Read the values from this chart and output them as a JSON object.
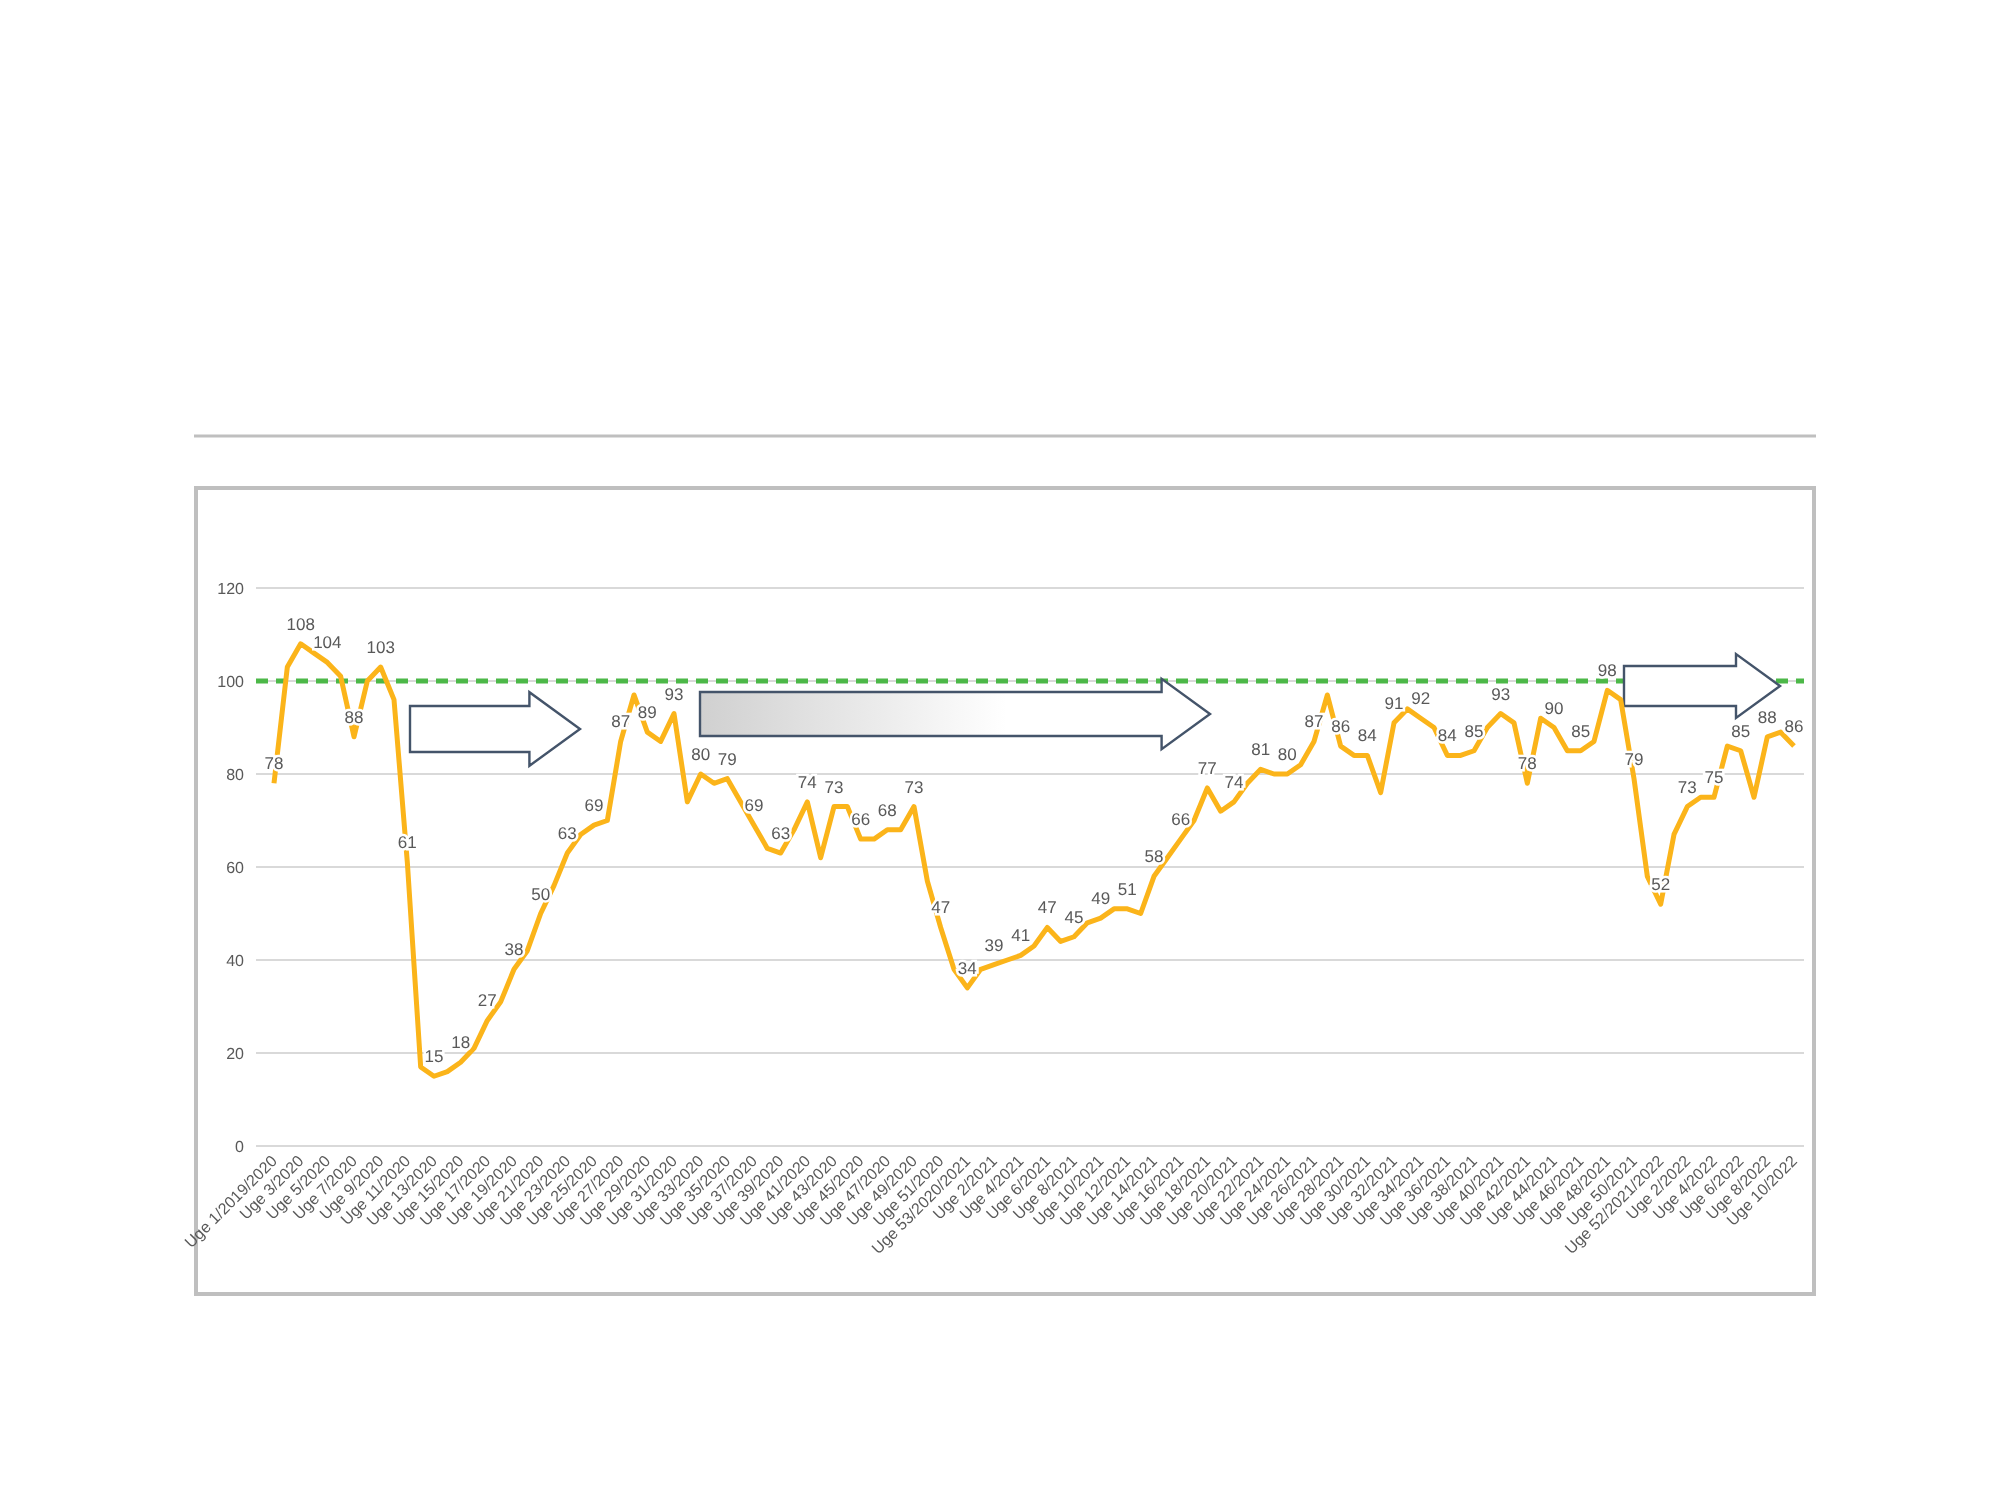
{
  "chart_data": {
    "type": "line",
    "categories": [
      "Uge 1/2019/2020",
      null,
      "Uge 3/2020",
      null,
      "Uge 5/2020",
      null,
      "Uge 7/2020",
      null,
      "Uge 9/2020",
      null,
      "Uge 11/2020",
      null,
      "Uge 13/2020",
      null,
      "Uge 15/2020",
      null,
      "Uge 17/2020",
      null,
      "Uge 19/2020",
      null,
      "Uge 21/2020",
      null,
      "Uge 23/2020",
      null,
      "Uge 25/2020",
      null,
      "Uge 27/2020",
      null,
      "Uge 29/2020",
      null,
      "Uge 31/2020",
      null,
      "Uge 33/2020",
      null,
      "Uge 35/2020",
      null,
      "Uge 37/2020",
      null,
      "Uge 39/2020",
      null,
      "Uge 41/2020",
      null,
      "Uge 43/2020",
      null,
      "Uge 45/2020",
      null,
      "Uge 47/2020",
      null,
      "Uge 49/2020",
      null,
      "Uge 51/2020",
      null,
      "Uge 53/2020/2021",
      null,
      "Uge 2/2021",
      null,
      "Uge 4/2021",
      null,
      "Uge 6/2021",
      null,
      "Uge 8/2021",
      null,
      "Uge 10/2021",
      null,
      "Uge 12/2021",
      null,
      "Uge 14/2021",
      null,
      "Uge 16/2021",
      null,
      "Uge 18/2021",
      null,
      "Uge 20/2021",
      null,
      "Uge 22/2021",
      null,
      "Uge 24/2021",
      null,
      "Uge 26/2021",
      null,
      "Uge 28/2021",
      null,
      "Uge 30/2021",
      null,
      "Uge 32/2021",
      null,
      "Uge 34/2021",
      null,
      "Uge 36/2021",
      null,
      "Uge 38/2021",
      null,
      "Uge 40/2021",
      null,
      "Uge 42/2021",
      null,
      "Uge 44/2021",
      null,
      "Uge 46/2021",
      null,
      "Uge 48/2021",
      null,
      "Uge 50/2021",
      null,
      "Uge 52/2021/2022",
      null,
      "Uge 2/2022",
      null,
      "Uge 4/2022",
      null,
      "Uge 6/2022",
      null,
      "Uge 8/2022",
      null,
      "Uge 10/2022"
    ],
    "series": [
      {
        "color": "#fbb41a",
        "values": [
          78,
          103,
          108,
          106,
          104,
          101,
          88,
          100,
          103,
          96,
          61,
          17,
          15,
          16,
          18,
          21,
          27,
          31,
          38,
          42,
          50,
          56,
          63,
          67,
          69,
          70,
          87,
          97,
          89,
          87,
          93,
          74,
          80,
          78,
          79,
          74,
          69,
          64,
          63,
          68,
          74,
          62,
          73,
          73,
          66,
          66,
          68,
          68,
          73,
          57,
          47,
          38,
          34,
          38,
          39,
          40,
          41,
          43,
          47,
          44,
          45,
          48,
          49,
          51,
          51,
          50,
          58,
          62,
          66,
          70,
          77,
          72,
          74,
          78,
          81,
          80,
          80,
          82,
          87,
          97,
          86,
          84,
          84,
          76,
          91,
          94,
          92,
          90,
          84,
          84,
          85,
          90,
          93,
          91,
          78,
          92,
          90,
          85,
          85,
          87,
          98,
          96,
          79,
          58,
          52,
          67,
          73,
          75,
          75,
          86,
          85,
          75,
          88,
          89,
          86
        ],
        "value_labels": [
          "78",
          null,
          "108",
          null,
          "104",
          null,
          "88",
          null,
          "103",
          null,
          "61",
          null,
          "15",
          null,
          "18",
          null,
          "27",
          null,
          "38",
          null,
          "50",
          null,
          "63",
          null,
          "69",
          null,
          "87",
          null,
          "89",
          null,
          "93",
          null,
          "80",
          null,
          "79",
          null,
          "69",
          null,
          "63",
          null,
          "74",
          null,
          "73",
          null,
          "66",
          null,
          "68",
          null,
          "73",
          null,
          "47",
          null,
          "34",
          null,
          "39",
          null,
          "41",
          null,
          "47",
          null,
          "45",
          null,
          "49",
          null,
          "51",
          null,
          "58",
          null,
          "66",
          null,
          "77",
          null,
          "74",
          null,
          "81",
          null,
          "80",
          null,
          "87",
          null,
          "86",
          null,
          "84",
          null,
          "91",
          null,
          "92",
          null,
          "84",
          null,
          "85",
          null,
          "93",
          null,
          "78",
          null,
          "90",
          null,
          "85",
          null,
          "98",
          null,
          "79",
          null,
          "52",
          null,
          "73",
          null,
          "75",
          null,
          "85",
          null,
          "88",
          null,
          "86"
        ]
      }
    ],
    "ylim": [
      0,
      120
    ],
    "yticks": [
      0,
      20,
      40,
      60,
      80,
      100,
      120
    ],
    "grid": "y",
    "ref_lines": [
      {
        "axis": "y",
        "value": 100,
        "color": "#4cb848",
        "line_style": "dashed"
      }
    ]
  }
}
